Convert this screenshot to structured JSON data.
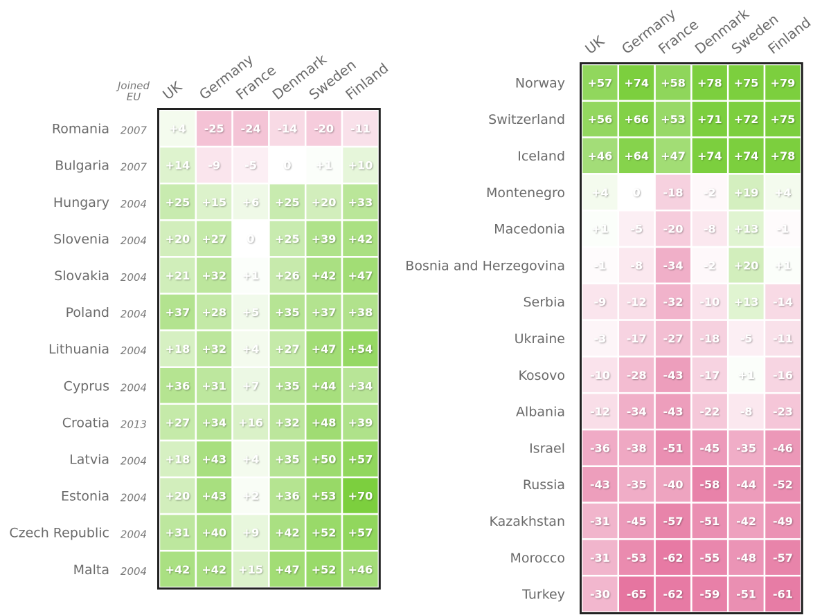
{
  "chart_data": [
    {
      "type": "heatmap",
      "columns": [
        "UK",
        "Germany",
        "France",
        "Denmark",
        "Sweden",
        "Finland"
      ],
      "extra_column_header": [
        "Joined",
        "EU"
      ],
      "rows": [
        "Romania",
        "Bulgaria",
        "Hungary",
        "Slovenia",
        "Slovakia",
        "Poland",
        "Lithuania",
        "Cyprus",
        "Croatia",
        "Latvia",
        "Estonia",
        "Czech Republic",
        "Malta"
      ],
      "joined": [
        "2007",
        "2007",
        "2004",
        "2004",
        "2004",
        "2004",
        "2004",
        "2004",
        "2013",
        "2004",
        "2004",
        "2004",
        "2004"
      ],
      "values": [
        [
          4,
          -25,
          -24,
          -14,
          -20,
          -11
        ],
        [
          14,
          -9,
          -5,
          0,
          1,
          10
        ],
        [
          25,
          15,
          6,
          25,
          20,
          33
        ],
        [
          20,
          27,
          0,
          25,
          39,
          42
        ],
        [
          21,
          32,
          1,
          26,
          42,
          47
        ],
        [
          37,
          28,
          5,
          35,
          37,
          38
        ],
        [
          18,
          32,
          4,
          27,
          47,
          54
        ],
        [
          36,
          31,
          7,
          35,
          44,
          34
        ],
        [
          27,
          34,
          16,
          32,
          48,
          39
        ],
        [
          18,
          43,
          4,
          35,
          50,
          57
        ],
        [
          20,
          43,
          2,
          36,
          53,
          70
        ],
        [
          31,
          40,
          9,
          42,
          52,
          57
        ],
        [
          42,
          42,
          15,
          47,
          52,
          46
        ]
      ]
    },
    {
      "type": "heatmap",
      "columns": [
        "UK",
        "Germany",
        "France",
        "Denmark",
        "Sweden",
        "Finland"
      ],
      "rows": [
        "Norway",
        "Switzerland",
        "Iceland",
        "Montenegro",
        "Macedonia",
        "Bosnia and Herzegovina",
        "Serbia",
        "Ukraine",
        "Kosovo",
        "Albania",
        "Israel",
        "Russia",
        "Kazakhstan",
        "Morocco",
        "Turkey"
      ],
      "values": [
        [
          57,
          74,
          58,
          78,
          75,
          79
        ],
        [
          56,
          66,
          53,
          71,
          72,
          75
        ],
        [
          46,
          64,
          47,
          74,
          74,
          78
        ],
        [
          4,
          0,
          -18,
          -2,
          19,
          4
        ],
        [
          1,
          -5,
          -20,
          -8,
          13,
          -1
        ],
        [
          -1,
          -8,
          -34,
          -2,
          20,
          1
        ],
        [
          -9,
          -12,
          -32,
          -10,
          13,
          -14
        ],
        [
          -3,
          -17,
          -27,
          -18,
          -5,
          -11
        ],
        [
          -10,
          -28,
          -43,
          -17,
          1,
          -16
        ],
        [
          -12,
          -34,
          -43,
          -22,
          -8,
          -23
        ],
        [
          -36,
          -38,
          -51,
          -45,
          -35,
          -46
        ],
        [
          -43,
          -35,
          -40,
          -58,
          -44,
          -52
        ],
        [
          -31,
          -45,
          -57,
          -51,
          -42,
          -49
        ],
        [
          -31,
          -53,
          -62,
          -55,
          -48,
          -57
        ],
        [
          -30,
          -65,
          -62,
          -59,
          -51,
          -61
        ]
      ]
    }
  ],
  "colors": {
    "positive": "#7ccf3e",
    "negative": "#e46c9a",
    "frame": "#222222"
  }
}
